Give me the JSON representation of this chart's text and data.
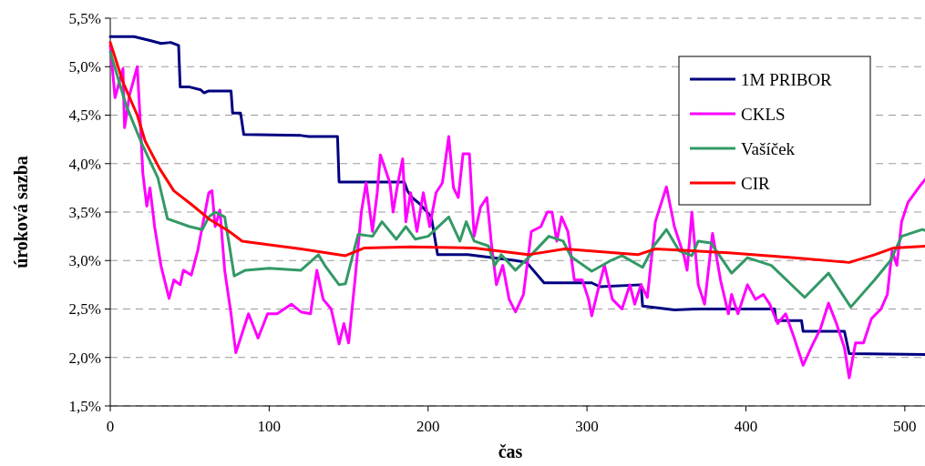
{
  "chart_data": {
    "type": "line",
    "xlabel": "čas",
    "ylabel": "úroková sazba",
    "xlim": [
      0,
      515
    ],
    "xticks": [
      0,
      100,
      200,
      300,
      400,
      500
    ],
    "ylim": [
      1.5,
      5.5
    ],
    "yticks": [
      {
        "value": 1.5,
        "label": "1,5%"
      },
      {
        "value": 2,
        "label": "2,0%"
      },
      {
        "value": 2.5,
        "label": "2,5%"
      },
      {
        "value": 3,
        "label": "3,0%"
      },
      {
        "value": 3.5,
        "label": "3,5%"
      },
      {
        "value": 4,
        "label": "4,0%"
      },
      {
        "value": 4.5,
        "label": "4,5%"
      },
      {
        "value": 5,
        "label": "5,0%"
      },
      {
        "value": 5.5,
        "label": "5,5%"
      }
    ],
    "grid": "y",
    "legend": "top right",
    "marker": "none",
    "line_style": "solid",
    "series": [
      {
        "name": "1M PRIBOR",
        "color": "#000080",
        "x": [
          0,
          15,
          25,
          32,
          38,
          43,
          44,
          50,
          57,
          59,
          62,
          76,
          77,
          82,
          84,
          120,
          125,
          143,
          144,
          185,
          187,
          190,
          195,
          202,
          206,
          225,
          240,
          255,
          262,
          273,
          303,
          308,
          334,
          335,
          355,
          370,
          400,
          418,
          419,
          435,
          436,
          462,
          465,
          515
        ],
        "values": [
          5.31,
          5.31,
          5.27,
          5.24,
          5.25,
          5.22,
          4.79,
          4.79,
          4.76,
          4.73,
          4.75,
          4.75,
          4.52,
          4.52,
          4.3,
          4.29,
          4.28,
          4.28,
          3.81,
          3.81,
          3.72,
          3.65,
          3.58,
          3.45,
          3.06,
          3.06,
          3.03,
          3.0,
          2.98,
          2.77,
          2.77,
          2.73,
          2.75,
          2.53,
          2.49,
          2.5,
          2.5,
          2.5,
          2.38,
          2.38,
          2.27,
          2.27,
          2.04,
          2.03
        ]
      },
      {
        "name": "CKLS",
        "color": "#ff00ff",
        "x": [
          0,
          3,
          8,
          9,
          12,
          17,
          19,
          20.5,
          23,
          25,
          28,
          32,
          37,
          40,
          44,
          46,
          51,
          55,
          62,
          64,
          66,
          69,
          72,
          76,
          79,
          84,
          87,
          93,
          99,
          105,
          114,
          120,
          126,
          130,
          134,
          139,
          144,
          147,
          150,
          154,
          158,
          161,
          165,
          168,
          170,
          176,
          178,
          181,
          184,
          186,
          189,
          193,
          197,
          201,
          205,
          209,
          213,
          216,
          219,
          222,
          226,
          229,
          233,
          237,
          240,
          243,
          247,
          251,
          255,
          260,
          265,
          271,
          275,
          278,
          281,
          284,
          288,
          292,
          297,
          301,
          303,
          307,
          311,
          316,
          322,
          327,
          330,
          334,
          338,
          343,
          350,
          355,
          361,
          363,
          366,
          370,
          374,
          379,
          384,
          389,
          391,
          395,
          401,
          406,
          411,
          415,
          420,
          425,
          430,
          436,
          441,
          447,
          452,
          457,
          462,
          465,
          469,
          474,
          479,
          485,
          489,
          492,
          495,
          498,
          502,
          510,
          515
        ],
        "values": [
          5.22,
          4.68,
          4.98,
          4.37,
          4.7,
          5.0,
          4.4,
          3.9,
          3.56,
          3.75,
          3.34,
          2.94,
          2.61,
          2.8,
          2.75,
          2.9,
          2.85,
          3.1,
          3.7,
          3.72,
          3.35,
          3.52,
          2.9,
          2.45,
          2.05,
          2.3,
          2.45,
          2.2,
          2.45,
          2.45,
          2.55,
          2.47,
          2.45,
          2.9,
          2.6,
          2.5,
          2.14,
          2.35,
          2.15,
          2.8,
          3.5,
          3.8,
          3.3,
          3.7,
          4.09,
          3.8,
          3.5,
          3.8,
          4.05,
          3.4,
          3.7,
          3.3,
          3.7,
          3.35,
          3.7,
          3.8,
          4.28,
          3.75,
          3.65,
          4.1,
          4.1,
          3.25,
          3.55,
          3.65,
          3.15,
          2.75,
          2.95,
          2.6,
          2.47,
          2.65,
          3.3,
          3.35,
          3.5,
          3.5,
          3.2,
          3.45,
          3.3,
          2.8,
          2.8,
          2.6,
          2.43,
          2.7,
          2.95,
          2.6,
          2.5,
          2.75,
          2.55,
          2.75,
          2.62,
          3.4,
          3.76,
          3.35,
          3.05,
          2.9,
          3.5,
          2.75,
          2.55,
          3.28,
          2.8,
          2.45,
          2.65,
          2.45,
          2.75,
          2.6,
          2.65,
          2.55,
          2.35,
          2.45,
          2.22,
          1.92,
          2.1,
          2.3,
          2.56,
          2.35,
          2.1,
          1.79,
          2.15,
          2.15,
          2.4,
          2.5,
          2.65,
          3.1,
          2.95,
          3.4,
          3.6,
          3.78,
          3.88
        ]
      },
      {
        "name": "Vašíček",
        "color": "#339966",
        "x": [
          0,
          10,
          20,
          30,
          36,
          50,
          58,
          62,
          66,
          72,
          75,
          78,
          85,
          100,
          120,
          131,
          135,
          144,
          148,
          156,
          165,
          171,
          180,
          186,
          192,
          200,
          213,
          220,
          224,
          229,
          238,
          242,
          246,
          255,
          265,
          276,
          285,
          290,
          303,
          315,
          322,
          335,
          342,
          350,
          358,
          366,
          370,
          378,
          391,
          401,
          416,
          437,
          452,
          466,
          481,
          491,
          498,
          511,
          515
        ],
        "values": [
          5.15,
          4.6,
          4.2,
          3.85,
          3.43,
          3.35,
          3.32,
          3.45,
          3.5,
          3.45,
          3.15,
          2.84,
          2.9,
          2.92,
          2.9,
          3.06,
          2.95,
          2.75,
          2.76,
          3.27,
          3.25,
          3.4,
          3.22,
          3.35,
          3.22,
          3.25,
          3.45,
          3.2,
          3.4,
          3.2,
          3.15,
          2.95,
          3.06,
          2.9,
          3.06,
          3.25,
          3.2,
          3.04,
          2.89,
          3.0,
          3.05,
          2.93,
          3.15,
          3.32,
          3.1,
          3.05,
          3.2,
          3.18,
          2.87,
          3.03,
          2.95,
          2.62,
          2.87,
          2.52,
          2.8,
          3.0,
          3.25,
          3.32,
          3.3
        ]
      },
      {
        "name": "CIR",
        "color": "#ff0000",
        "x": [
          0,
          8,
          17,
          22,
          31,
          40,
          51,
          62,
          74,
          83,
          97,
          120,
          148,
          160,
          189,
          229,
          263,
          286,
          332,
          343,
          389,
          429,
          465,
          481,
          493,
          515
        ],
        "values": [
          5.25,
          4.84,
          4.5,
          4.23,
          3.95,
          3.72,
          3.58,
          3.43,
          3.31,
          3.2,
          3.17,
          3.12,
          3.05,
          3.13,
          3.14,
          3.13,
          3.06,
          3.12,
          3.06,
          3.12,
          3.08,
          3.03,
          2.98,
          3.06,
          3.13,
          3.15
        ]
      }
    ]
  }
}
